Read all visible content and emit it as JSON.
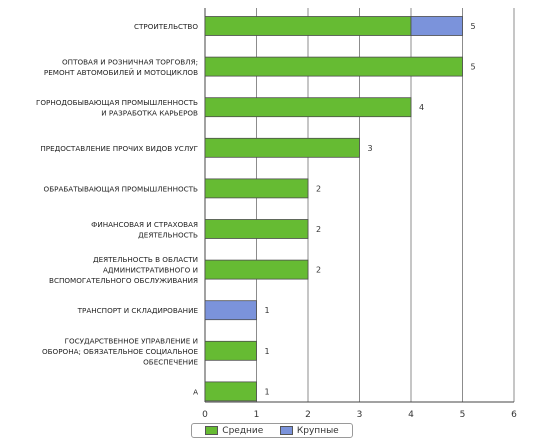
{
  "chart_data": {
    "type": "bar",
    "orientation": "horizontal",
    "stacked": true,
    "categories": [
      "СТРОИТЕЛЬСТВО",
      "ОПТОВАЯ И РОЗНИЧНАЯ ТОРГОВЛЯ; РЕМОНТ АВТОМОБИЛЕЙ И МОТОЦИКЛОВ",
      "ГОРНОДОБЫВАЮЩАЯ ПРОМЫШЛЕННОСТЬ И РАЗРАБОТКА КАРЬЕРОВ",
      "ПРЕДОСТАВЛЕНИЕ ПРОЧИХ ВИДОВ УСЛУГ",
      "ОБРАБАТЫВАЮЩАЯ ПРОМЫШЛЕННОСТЬ",
      "ФИНАНСОВАЯ И СТРАХОВАЯ ДЕЯТЕЛЬНОСТЬ",
      "ДЕЯТЕЛЬНОСТЬ В ОБЛАСТИ АДМИНИСТРАТИВНОГО И ВСПОМОГАТЕЛЬНОГО ОБСЛУЖИВАНИЯ",
      "ТРАНСПОРТ И СКЛАДИРОВАНИЕ",
      "ГОСУДАРСТВЕННОЕ УПРАВЛЕНИЕ И ОБОРОНА; ОБЯЗАТЕЛЬНОЕ СОЦИАЛЬНОЕ ОБЕСПЕЧЕНИЕ",
      "A"
    ],
    "category_lines": [
      [
        "СТРОИТЕЛЬСТВО"
      ],
      [
        "ОПТОВАЯ И РОЗНИЧНАЯ ТОРГОВЛЯ;",
        "РЕМОНТ АВТОМОБИЛЕЙ И МОТОЦИКЛОВ"
      ],
      [
        "ГОРНОДОБЫВАЮЩАЯ ПРОМЫШЛЕННОСТЬ",
        "И РАЗРАБОТКА КАРЬЕРОВ"
      ],
      [
        "ПРЕДОСТАВЛЕНИЕ ПРОЧИХ ВИДОВ УСЛУГ"
      ],
      [
        "ОБРАБАТЫВАЮЩАЯ ПРОМЫШЛЕННОСТЬ"
      ],
      [
        "ФИНАНСОВАЯ И СТРАХОВАЯ",
        "ДЕЯТЕЛЬНОСТЬ"
      ],
      [
        "ДЕЯТЕЛЬНОСТЬ В ОБЛАСТИ",
        "АДМИНИСТРАТИВНОГО И",
        "ВСПОМОГАТЕЛЬНОГО ОБСЛУЖИВАНИЯ"
      ],
      [
        "ТРАНСПОРТ И СКЛАДИРОВАНИЕ"
      ],
      [
        "ГОСУДАРСТВЕННОЕ УПРАВЛЕНИЕ И",
        "ОБОРОНА; ОБЯЗАТЕЛЬНОЕ СОЦИАЛЬНОЕ",
        "ОБЕСПЕЧЕНИЕ"
      ],
      [
        "A"
      ]
    ],
    "series": [
      {
        "name": "Средние",
        "color": "#66bb33",
        "values": [
          4,
          5,
          4,
          3,
          2,
          2,
          2,
          0,
          1,
          1
        ]
      },
      {
        "name": "Крупные",
        "color": "#7b93db",
        "values": [
          1,
          0,
          0,
          0,
          0,
          0,
          0,
          1,
          0,
          0
        ]
      }
    ],
    "totals": [
      5,
      5,
      4,
      3,
      2,
      2,
      2,
      1,
      1,
      1
    ],
    "xlim": [
      0,
      6
    ],
    "xticks": [
      "0",
      "1",
      "2",
      "3",
      "4",
      "5",
      "6"
    ],
    "grid": true,
    "legend_position": "bottom-center",
    "title": "",
    "xlabel": "",
    "ylabel": ""
  }
}
